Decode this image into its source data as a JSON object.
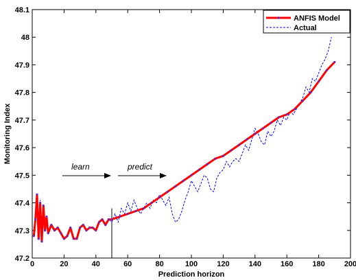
{
  "chart_data": {
    "type": "line",
    "title": "",
    "xlabel": "Prediction horizon",
    "ylabel": "Monitoring Index",
    "xlim": [
      0,
      200
    ],
    "ylim": [
      47.2,
      48.1
    ],
    "xticks": [
      "0",
      "20",
      "40",
      "60",
      "80",
      "100",
      "120",
      "140",
      "160",
      "180",
      "200"
    ],
    "yticks": [
      "47.2",
      "47.3",
      "47.4",
      "47.5",
      "47.6",
      "47.7",
      "47.8",
      "47.9",
      "48",
      "48.1"
    ],
    "grid": false,
    "legend_position": "top-right",
    "split_x": 50,
    "annotations": {
      "learn": "learn",
      "predict": "predict"
    },
    "colors": {
      "model": "#ff0000",
      "actual": "#0000ff",
      "marker": "#7b1fa2"
    },
    "series": [
      {
        "name": "ANFIS Model",
        "style": "solid-thick",
        "x": [
          1,
          2,
          3,
          4,
          5,
          6,
          7,
          8,
          9,
          10,
          12,
          14,
          16,
          18,
          20,
          22,
          24,
          26,
          28,
          30,
          32,
          34,
          36,
          38,
          40,
          42,
          44,
          46,
          48,
          50,
          55,
          60,
          65,
          70,
          75,
          80,
          85,
          90,
          95,
          100,
          105,
          110,
          115,
          120,
          125,
          130,
          135,
          140,
          145,
          150,
          155,
          160,
          165,
          170,
          175,
          180,
          185,
          190
        ],
        "values": [
          47.28,
          47.34,
          47.43,
          47.27,
          47.4,
          47.26,
          47.39,
          47.3,
          47.35,
          47.29,
          47.32,
          47.3,
          47.31,
          47.29,
          47.27,
          47.28,
          47.31,
          47.27,
          47.27,
          47.31,
          47.32,
          47.3,
          47.31,
          47.31,
          47.3,
          47.33,
          47.34,
          47.32,
          47.34,
          47.34,
          47.35,
          47.36,
          47.37,
          47.38,
          47.4,
          47.42,
          47.44,
          47.46,
          47.48,
          47.5,
          47.52,
          47.54,
          47.56,
          47.57,
          47.59,
          47.61,
          47.63,
          47.65,
          47.67,
          47.69,
          47.71,
          47.72,
          47.74,
          47.77,
          47.8,
          47.84,
          47.88,
          47.91
        ]
      },
      {
        "name": "Actual",
        "style": "dashed-thin",
        "x": [
          1,
          2,
          3,
          4,
          5,
          6,
          7,
          8,
          9,
          10,
          12,
          14,
          16,
          18,
          20,
          22,
          24,
          26,
          28,
          30,
          32,
          34,
          36,
          38,
          40,
          42,
          44,
          46,
          48,
          50,
          52,
          54,
          56,
          58,
          60,
          62,
          64,
          66,
          68,
          70,
          72,
          74,
          76,
          78,
          80,
          82,
          84,
          86,
          88,
          90,
          92,
          94,
          96,
          98,
          100,
          102,
          104,
          106,
          108,
          110,
          112,
          114,
          116,
          118,
          120,
          122,
          124,
          126,
          128,
          130,
          132,
          134,
          136,
          138,
          140,
          142,
          144,
          146,
          148,
          150,
          152,
          154,
          156,
          158,
          160,
          162,
          164,
          166,
          168,
          170,
          172,
          174,
          176,
          178,
          180,
          182,
          184,
          186,
          188
        ],
        "values": [
          47.28,
          47.33,
          47.43,
          47.27,
          47.41,
          47.26,
          47.39,
          47.3,
          47.35,
          47.29,
          47.32,
          47.3,
          47.31,
          47.29,
          47.27,
          47.28,
          47.31,
          47.27,
          47.27,
          47.31,
          47.32,
          47.3,
          47.31,
          47.31,
          47.3,
          47.33,
          47.34,
          47.32,
          47.34,
          47.33,
          47.36,
          47.33,
          47.38,
          47.36,
          47.4,
          47.37,
          47.41,
          47.38,
          47.36,
          47.38,
          47.4,
          47.38,
          47.41,
          47.4,
          47.43,
          47.41,
          47.39,
          47.42,
          47.36,
          47.33,
          47.34,
          47.37,
          47.41,
          47.44,
          47.48,
          47.46,
          47.44,
          47.47,
          47.5,
          47.49,
          47.45,
          47.44,
          47.49,
          47.51,
          47.52,
          47.55,
          47.53,
          47.55,
          47.56,
          47.55,
          47.58,
          47.61,
          47.59,
          47.63,
          47.67,
          47.65,
          47.62,
          47.61,
          47.66,
          47.64,
          47.66,
          47.7,
          47.68,
          47.71,
          47.7,
          47.73,
          47.72,
          47.74,
          47.76,
          47.78,
          47.82,
          47.8,
          47.85,
          47.84,
          47.87,
          47.9,
          47.92,
          47.95,
          48.0
        ]
      }
    ]
  }
}
